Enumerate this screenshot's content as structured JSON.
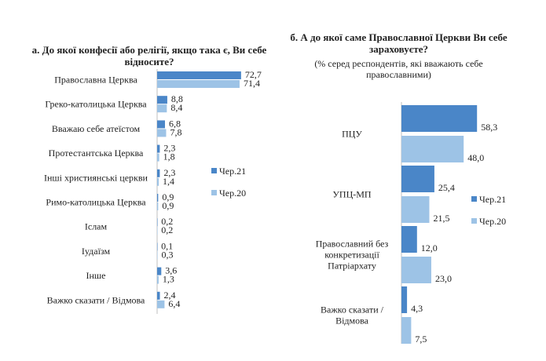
{
  "colors": {
    "series1": "#4a86c8",
    "series2": "#9dc3e6"
  },
  "chart_data": [
    {
      "type": "bar",
      "orientation": "horizontal",
      "title": "а. До якої конфесії або релігії, якщо така є, Ви себе відносите?",
      "categories": [
        "Православна Церква",
        "Греко-католицька Церква",
        "Вважаю себе атеїстом",
        "Протестантська Церква",
        "Інші християнські церкви",
        "Римо-католицька Церква",
        "Іслам",
        "Іудаїзм",
        "Інше",
        "Важко сказати / Відмова"
      ],
      "series": [
        {
          "name": "Чер.21",
          "values": [
            "72,7",
            "8,8",
            "6,8",
            "2,3",
            "2,3",
            "0,9",
            "0,2",
            "0,1",
            "3,6",
            "2,4"
          ]
        },
        {
          "name": "Чер.20",
          "values": [
            "71,4",
            "8,4",
            "7,8",
            "1,8",
            "1,4",
            "0,9",
            "0,2",
            "0,3",
            "1,3",
            "6,4"
          ]
        }
      ],
      "legend": "right",
      "grid": false
    },
    {
      "type": "bar",
      "orientation": "horizontal",
      "title": "б. А до якої саме Православної Церкви Ви себе зараховуєте?",
      "subtitle": "(% серед респондентів, які вважають себе православними)",
      "categories": [
        "ПЦУ",
        "УПЦ-МП",
        "Православний без конкретизації Патріархату",
        "Важко сказати / Відмова"
      ],
      "series": [
        {
          "name": "Чер.21",
          "values": [
            "58,3",
            "25,4",
            "12,0",
            "4,3"
          ]
        },
        {
          "name": "Чер.20",
          "values": [
            "48,0",
            "21,5",
            "23,0",
            "7,5"
          ]
        }
      ],
      "legend": "right",
      "grid": false
    }
  ]
}
